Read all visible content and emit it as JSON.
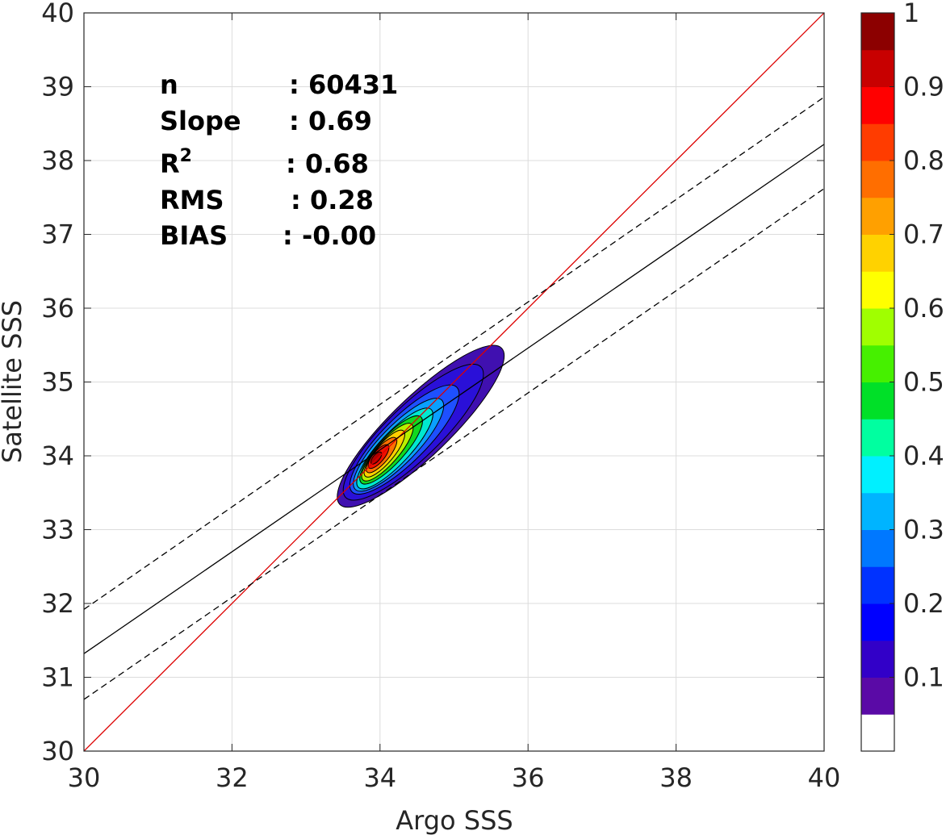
{
  "chart_data": {
    "type": "heatmap",
    "subtype": "density-contour",
    "xlabel": "Argo SSS",
    "ylabel": "Satellite SSS",
    "xlim": [
      30,
      40
    ],
    "ylim": [
      30,
      40
    ],
    "xticks": [
      "30",
      "32",
      "34",
      "36",
      "38",
      "40"
    ],
    "yticks": [
      "30",
      "31",
      "32",
      "33",
      "34",
      "35",
      "36",
      "37",
      "38",
      "39",
      "40"
    ],
    "grid": true,
    "stats": [
      {
        "label": "n",
        "sep": ": 60431"
      },
      {
        "label": "Slope",
        "sep": ": 0.69"
      },
      {
        "label": "R",
        "sup": "2",
        "sep": ": 0.68"
      },
      {
        "label": "RMS",
        "sep": ": 0.28"
      },
      {
        "label": "BIAS",
        "sep": ": -0.00"
      }
    ],
    "lines": [
      {
        "role": "one-to-one",
        "style": "solid",
        "color": "#dd0000",
        "x": [
          30,
          40
        ],
        "y": [
          30,
          40
        ]
      },
      {
        "role": "regression",
        "style": "solid",
        "color": "#000000",
        "x": [
          30,
          40
        ],
        "y": [
          31.32,
          38.22
        ]
      },
      {
        "role": "upper-bound",
        "style": "dashed",
        "color": "#000000",
        "x": [
          30,
          40
        ],
        "y": [
          31.92,
          38.86
        ]
      },
      {
        "role": "lower-bound",
        "style": "dashed",
        "color": "#000000",
        "x": [
          30,
          40
        ],
        "y": [
          30.7,
          37.62
        ]
      }
    ],
    "density_peak": {
      "x": 33.95,
      "y": 33.97
    },
    "contours": [
      {
        "level": 0.05,
        "color": "#4010b0",
        "ellipse": {
          "cx": 34.55,
          "cy": 34.4,
          "rx": 1.52,
          "ry": 0.4,
          "angle_deg": 44
        }
      },
      {
        "level": 0.1,
        "color": "#2a10d8",
        "ellipse": {
          "cx": 34.45,
          "cy": 34.32,
          "rx": 1.27,
          "ry": 0.36,
          "angle_deg": 44
        }
      },
      {
        "level": 0.2,
        "color": "#1e50ff",
        "ellipse": {
          "cx": 34.33,
          "cy": 34.22,
          "rx": 1.0,
          "ry": 0.3,
          "angle_deg": 45
        }
      },
      {
        "level": 0.3,
        "color": "#0aa0ff",
        "ellipse": {
          "cx": 34.25,
          "cy": 34.15,
          "rx": 0.84,
          "ry": 0.25,
          "angle_deg": 46
        }
      },
      {
        "level": 0.4,
        "color": "#00e8d0",
        "ellipse": {
          "cx": 34.2,
          "cy": 34.1,
          "rx": 0.72,
          "ry": 0.21,
          "angle_deg": 47
        }
      },
      {
        "level": 0.5,
        "color": "#10d820",
        "ellipse": {
          "cx": 34.15,
          "cy": 34.08,
          "rx": 0.6,
          "ry": 0.18,
          "angle_deg": 48
        }
      },
      {
        "level": 0.6,
        "color": "#b8f000",
        "ellipse": {
          "cx": 34.1,
          "cy": 34.05,
          "rx": 0.5,
          "ry": 0.15,
          "angle_deg": 49
        }
      },
      {
        "level": 0.7,
        "color": "#ffd000",
        "ellipse": {
          "cx": 34.06,
          "cy": 34.03,
          "rx": 0.4,
          "ry": 0.125,
          "angle_deg": 50
        }
      },
      {
        "level": 0.8,
        "color": "#ff7000",
        "ellipse": {
          "cx": 34.02,
          "cy": 34.01,
          "rx": 0.3,
          "ry": 0.1,
          "angle_deg": 50
        }
      },
      {
        "level": 0.9,
        "color": "#f01000",
        "ellipse": {
          "cx": 33.98,
          "cy": 33.99,
          "rx": 0.2,
          "ry": 0.075,
          "angle_deg": 50
        }
      },
      {
        "level": 0.95,
        "color": "#b00000",
        "ellipse": {
          "cx": 33.95,
          "cy": 33.97,
          "rx": 0.1,
          "ry": 0.045,
          "angle_deg": 50
        }
      }
    ],
    "colorbar": {
      "range": [
        0,
        1
      ],
      "ticks": [
        "0.1",
        "0.2",
        "0.3",
        "0.4",
        "0.5",
        "0.6",
        "0.7",
        "0.8",
        "0.9",
        "1"
      ],
      "colors": [
        "#ffffff",
        "#5a0aa6",
        "#3200c8",
        "#0000ff",
        "#0032ff",
        "#0078ff",
        "#00b4ff",
        "#00f0ff",
        "#00ffa0",
        "#00e028",
        "#46f000",
        "#a0ff00",
        "#ffff00",
        "#ffd200",
        "#ffa000",
        "#ff6e00",
        "#ff3c00",
        "#ff0000",
        "#c80000",
        "#8c0000"
      ]
    }
  }
}
